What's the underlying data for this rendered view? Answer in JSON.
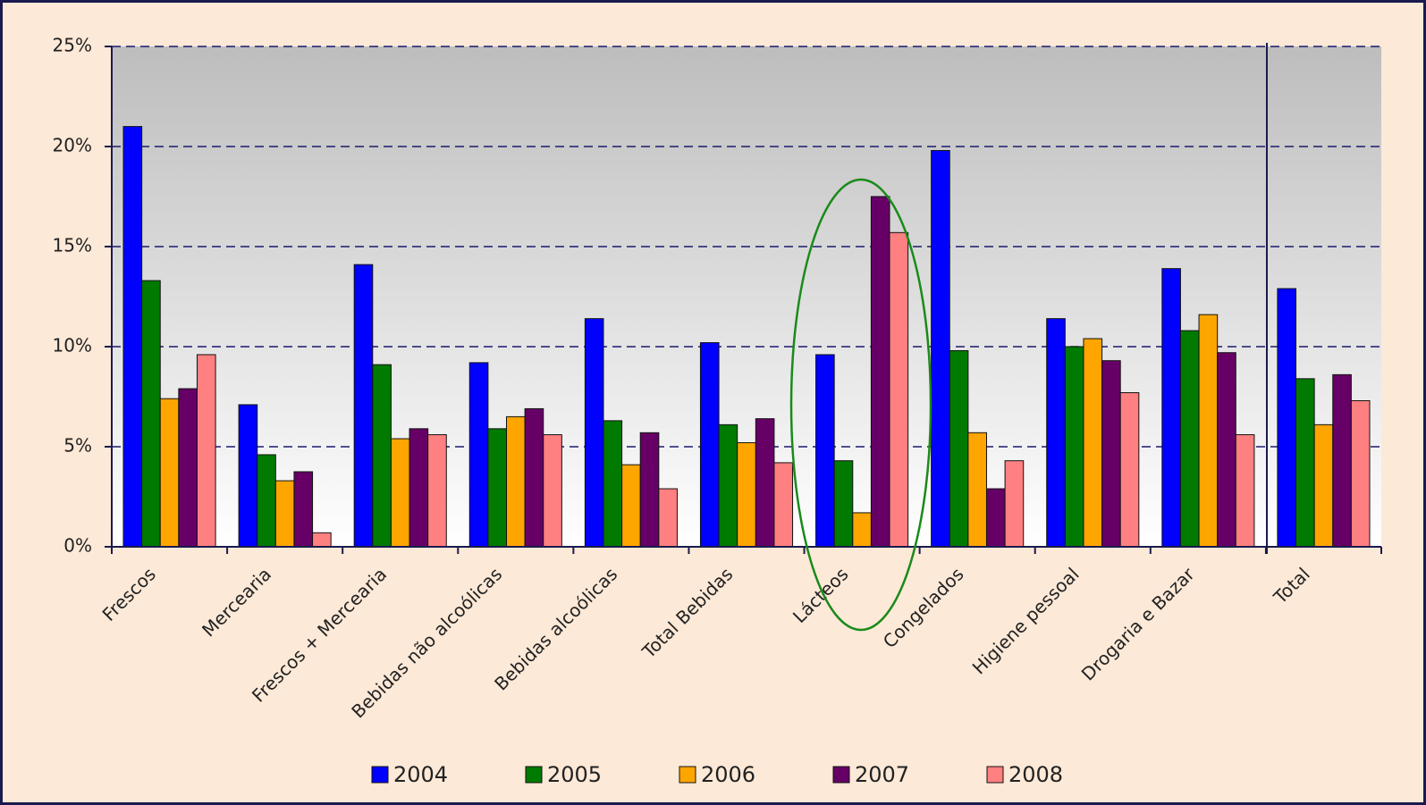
{
  "chart_data": {
    "type": "bar",
    "categories": [
      "Frescos",
      "Mercearia",
      "Frescos + Mercearia",
      "Bebidas não alcoólicas",
      "Bebidas alcoólicas",
      "Total Bebidas",
      "Lácteos",
      "Congelados",
      "Higiene pessoal",
      "Drogaria e Bazar",
      "Total"
    ],
    "series": [
      {
        "name": "2004",
        "color": "#0000ff",
        "values": [
          21.0,
          7.1,
          14.1,
          9.2,
          11.4,
          10.2,
          9.6,
          19.8,
          11.4,
          13.9,
          12.9
        ]
      },
      {
        "name": "2005",
        "color": "#007a00",
        "values": [
          13.3,
          4.6,
          9.1,
          5.9,
          6.3,
          6.1,
          4.3,
          9.8,
          10.0,
          10.8,
          8.4
        ]
      },
      {
        "name": "2006",
        "color": "#ffa500",
        "values": [
          7.4,
          3.3,
          5.4,
          6.5,
          4.1,
          5.2,
          1.7,
          5.7,
          10.4,
          11.6,
          6.1
        ]
      },
      {
        "name": "2007",
        "color": "#660066",
        "values": [
          7.9,
          3.75,
          5.9,
          6.9,
          5.7,
          6.4,
          17.5,
          2.9,
          9.3,
          9.7,
          8.6
        ]
      },
      {
        "name": "2008",
        "color": "#ff8080",
        "values": [
          9.6,
          0.7,
          5.6,
          5.6,
          2.9,
          4.2,
          15.7,
          4.3,
          7.7,
          5.6,
          7.3
        ]
      }
    ],
    "ylim": [
      0,
      25
    ],
    "yticks": [
      {
        "value": 0,
        "label": "0%"
      },
      {
        "value": 5,
        "label": "5%"
      },
      {
        "value": 10,
        "label": "10%"
      },
      {
        "value": 15,
        "label": "15%"
      },
      {
        "value": 20,
        "label": "20%"
      },
      {
        "value": 25,
        "label": "25%"
      }
    ],
    "grid": true,
    "legend": "bottom"
  }
}
